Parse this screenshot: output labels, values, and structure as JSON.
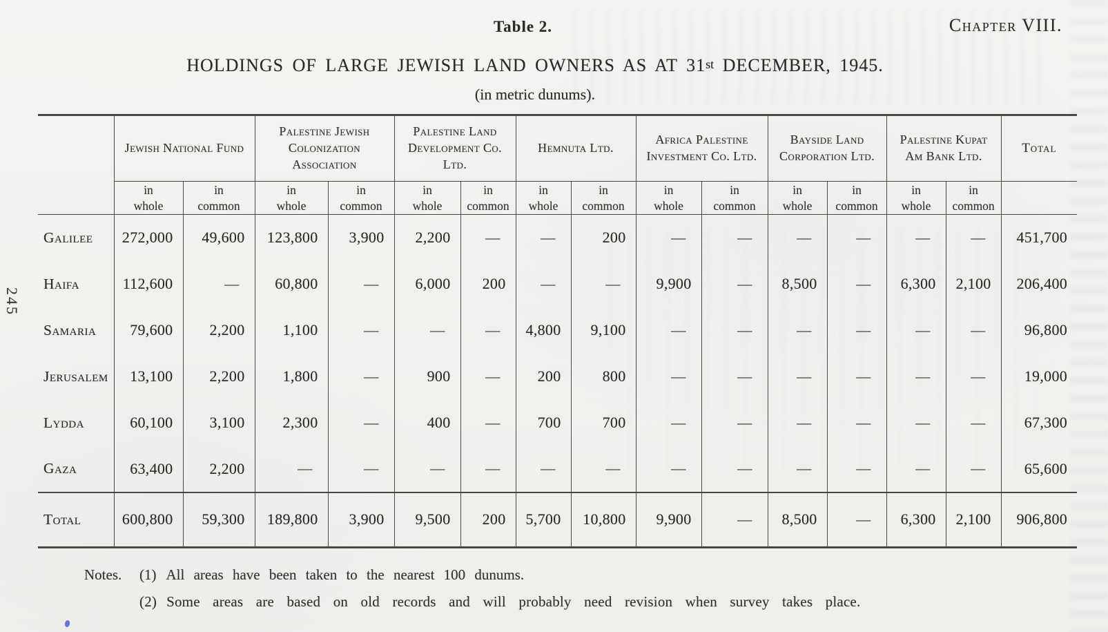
{
  "colors": {
    "paper": "#f0f2ef",
    "ink": "#2c2a25",
    "rule": "#49473f"
  },
  "page": {
    "table_label": "Table 2.",
    "chapter": "Chapter VIII.",
    "title_part1": "HOLDINGS OF LARGE JEWISH LAND OWNERS AS AT 31",
    "title_ordinal": "st",
    "title_part2": " DECEMBER, 1945.",
    "subtitle": "(in metric dunums).",
    "page_number": "245"
  },
  "table": {
    "groups": [
      {
        "name": "Jewish National Fund"
      },
      {
        "name": "Palestine Jewish Colonization Association"
      },
      {
        "name": "Palestine Land Development Co. Ltd."
      },
      {
        "name": "Hemnuta Ltd."
      },
      {
        "name": "Africa Palestine Investment Co. Ltd."
      },
      {
        "name": "Bayside Land Corporation Ltd."
      },
      {
        "name": "Palestine Kupat Am Bank Ltd."
      }
    ],
    "subheaders": {
      "whole": "in\nwhole",
      "common": "in\ncommon"
    },
    "total_header": "Total",
    "rows": [
      {
        "region": "Galilee",
        "values": [
          "272,000",
          "49,600",
          "123,800",
          "3,900",
          "2,200",
          "—",
          "—",
          "200",
          "—",
          "—",
          "—",
          "—",
          "—",
          "—"
        ],
        "total": "451,700"
      },
      {
        "region": "Haifa",
        "values": [
          "112,600",
          "—",
          "60,800",
          "—",
          "6,000",
          "200",
          "—",
          "—",
          "9,900",
          "—",
          "8,500",
          "—",
          "6,300",
          "2,100"
        ],
        "total": "206,400"
      },
      {
        "region": "Samaria",
        "values": [
          "79,600",
          "2,200",
          "1,100",
          "—",
          "—",
          "—",
          "4,800",
          "9,100",
          "—",
          "—",
          "—",
          "—",
          "—",
          "—"
        ],
        "total": "96,800"
      },
      {
        "region": "Jerusalem",
        "values": [
          "13,100",
          "2,200",
          "1,800",
          "—",
          "900",
          "—",
          "200",
          "800",
          "—",
          "—",
          "—",
          "—",
          "—",
          "—"
        ],
        "total": "19,000"
      },
      {
        "region": "Lydda",
        "values": [
          "60,100",
          "3,100",
          "2,300",
          "—",
          "400",
          "—",
          "700",
          "700",
          "—",
          "—",
          "—",
          "—",
          "—",
          "—"
        ],
        "total": "67,300"
      },
      {
        "region": "Gaza",
        "values": [
          "63,400",
          "2,200",
          "—",
          "—",
          "—",
          "—",
          "—",
          "—",
          "—",
          "—",
          "—",
          "—",
          "—",
          "—"
        ],
        "total": "65,600"
      }
    ],
    "total_row": {
      "region": "Total",
      "values": [
        "600,800",
        "59,300",
        "189,800",
        "3,900",
        "9,500",
        "200",
        "5,700",
        "10,800",
        "9,900",
        "—",
        "8,500",
        "—",
        "6,300",
        "2,100"
      ],
      "total": "906,800"
    }
  },
  "notes": {
    "label": "Notes.",
    "items": [
      {
        "num": "(1)",
        "text": "All areas have been taken to the nearest 100 dunums."
      },
      {
        "num": "(2)",
        "text": "Some areas are based on old records and will probably need revision when survey takes place."
      }
    ]
  }
}
